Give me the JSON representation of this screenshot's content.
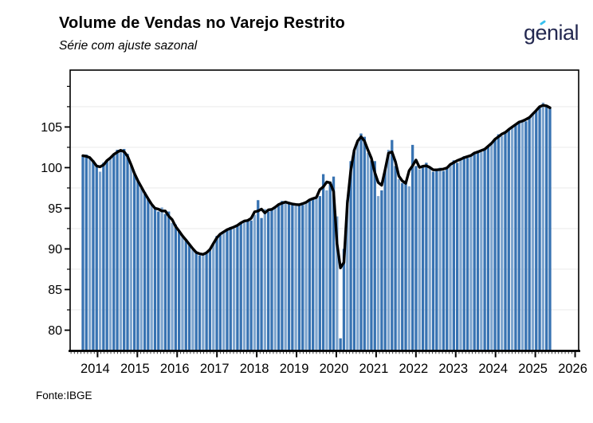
{
  "header": {
    "title": "Volume de Vendas no Varejo Restrito",
    "subtitle": "Série com ajuste sazonal",
    "logo_text": "genial"
  },
  "footer": {
    "source": "Fonte:IBGE"
  },
  "chart_data": {
    "type": "bar",
    "title": "Volume de Vendas no Varejo Restrito",
    "subtitle": "Série com ajuste sazonal",
    "source": "Fonte:IBGE",
    "months_start": "2014-01",
    "months_end": "2025-05",
    "bar_values": [
      101.4,
      101.6,
      101.2,
      100.9,
      100.2,
      99.5,
      100.6,
      100.9,
      101.1,
      101.6,
      102.2,
      101.9,
      102.3,
      101.7,
      100.2,
      99.3,
      98.4,
      97.5,
      97.0,
      96.1,
      95.4,
      95.0,
      94.6,
      95.1,
      94.3,
      94.6,
      93.2,
      93.0,
      92.1,
      91.5,
      91.2,
      90.6,
      89.9,
      89.6,
      89.2,
      89.4,
      89.4,
      89.8,
      90.6,
      91.6,
      91.9,
      92.0,
      92.4,
      92.7,
      92.5,
      92.9,
      93.3,
      93.4,
      93.6,
      93.5,
      94.2,
      96.0,
      93.8,
      94.9,
      94.6,
      94.9,
      95.1,
      95.4,
      95.9,
      95.6,
      95.8,
      95.5,
      95.3,
      95.6,
      95.4,
      95.7,
      96.1,
      96.3,
      96.2,
      96.5,
      99.2,
      97.2,
      98.3,
      98.9,
      94.0,
      79.0,
      90.0,
      96.0,
      100.8,
      102.2,
      103.4,
      104.2,
      103.8,
      101.8,
      100.9,
      100.8,
      96.5,
      97.2,
      99.8,
      102.2,
      103.4,
      100.2,
      98.6,
      98.1,
      98.4,
      97.7,
      102.8,
      100.2,
      99.8,
      100.1,
      100.6,
      100.0,
      99.5,
      99.7,
      100.0,
      99.6,
      99.9,
      100.4,
      100.9,
      100.6,
      101.1,
      101.4,
      101.2,
      101.5,
      101.8,
      102.1,
      101.9,
      102.3,
      102.6,
      103.0,
      103.4,
      104.1,
      103.9,
      104.4,
      104.7,
      105.0,
      105.3,
      105.6,
      105.9,
      105.7,
      106.2,
      106.6,
      107.0,
      107.5,
      108.0,
      107.5,
      107.3
    ],
    "line_series": {
      "derivation": "3-month centered moving average of bar_values",
      "color": "#000000"
    },
    "ylim": [
      77.5,
      112
    ],
    "y_ticks": [
      80,
      85,
      90,
      95,
      100,
      105
    ],
    "y_minor_ticks": [
      82.5,
      87.5,
      92.5,
      97.5,
      102.5,
      107.5,
      110
    ],
    "minor_gridlines": [
      82.5,
      87.5,
      92.5,
      97.5,
      102.5,
      107.5
    ],
    "x_tick_labels": [
      "2014",
      "2015",
      "2016",
      "2017",
      "2018",
      "2019",
      "2020",
      "2021",
      "2022",
      "2023",
      "2024",
      "2025",
      "2026"
    ],
    "grid": "minor horizontal only",
    "legend": "none",
    "colors": {
      "bar": "#3873b2",
      "bar_light": "#7fa6cf",
      "line": "#000000",
      "grid": "#ececec",
      "logo_navy": "#232850",
      "logo_cyan": "#39c1ef"
    }
  }
}
